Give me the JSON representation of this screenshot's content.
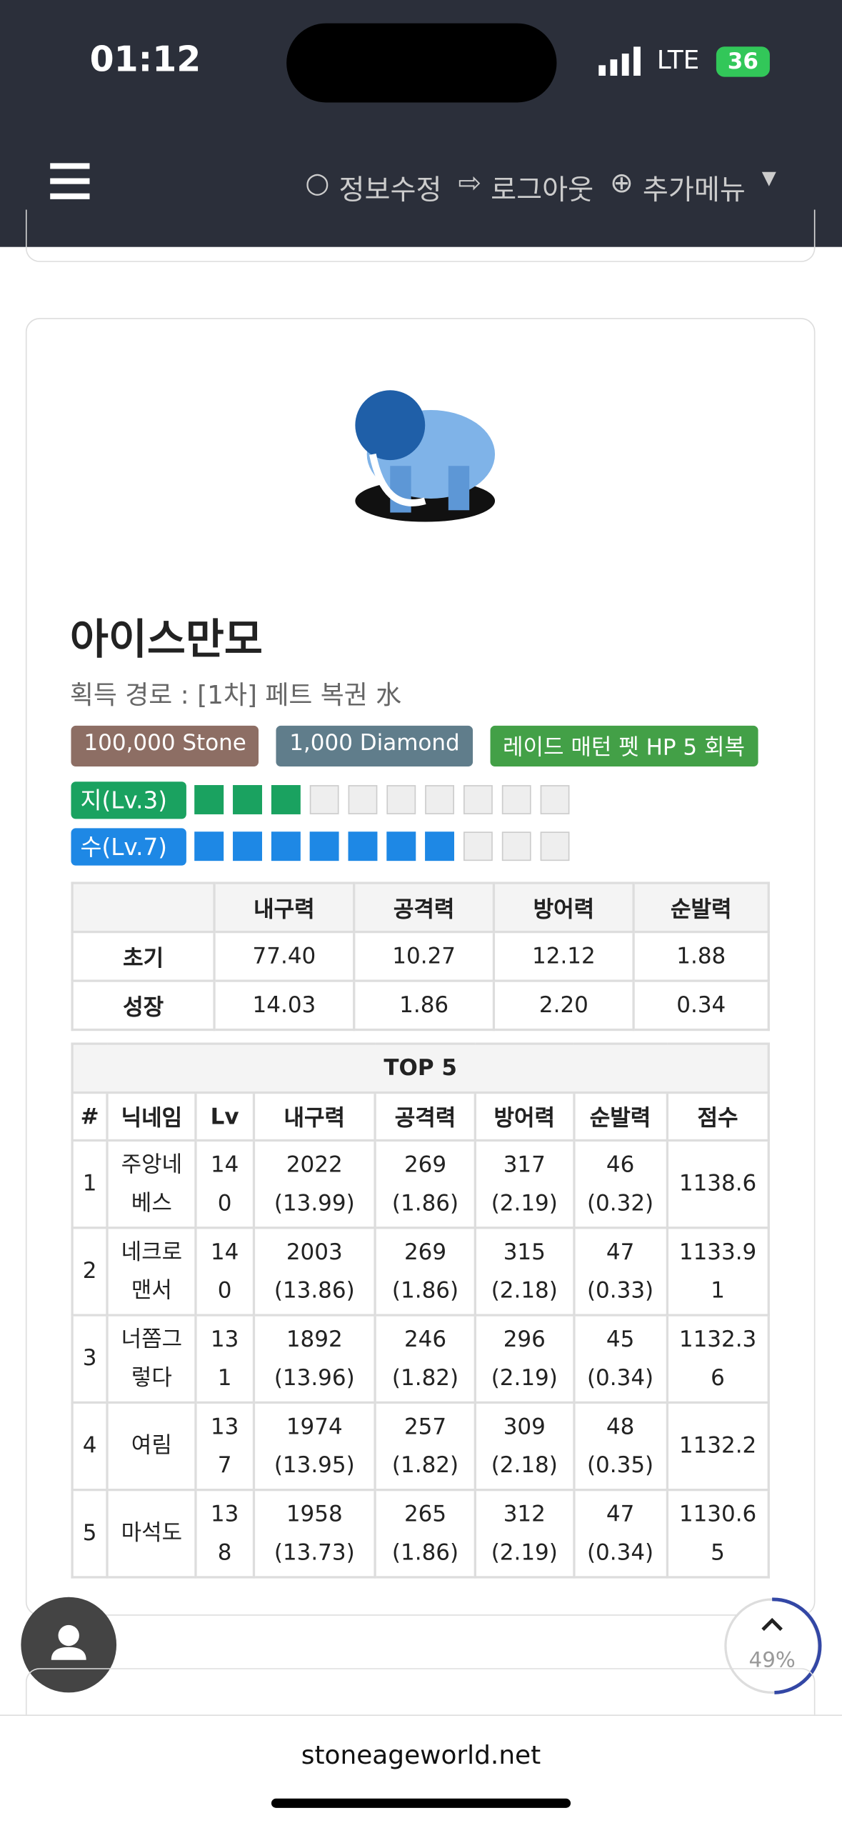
{
  "status": {
    "time": "01:12",
    "network": "LTE",
    "battery": "36"
  },
  "nav": {
    "items": [
      "정보수정",
      "로그아웃",
      "추가메뉴"
    ]
  },
  "card": {
    "name": "아이스만모",
    "source": "획득 경로 : [1차] 페트 복권 水",
    "badges": [
      "100,000 Stone",
      "1,000 Diamond",
      "레이드 매턴 펫 HP 5 회복"
    ],
    "elements": [
      {
        "label": "지(Lv.3)",
        "level": 3,
        "slots": 10,
        "color": "#1aa260"
      },
      {
        "label": "수(Lv.7)",
        "level": 7,
        "slots": 10,
        "color": "#1e88e5"
      }
    ],
    "stats": {
      "headers": [
        "내구력",
        "공격력",
        "방어력",
        "순발력"
      ],
      "rows": [
        {
          "label": "초기",
          "values": [
            "77.40",
            "10.27",
            "12.12",
            "1.88"
          ]
        },
        {
          "label": "성장",
          "values": [
            "14.03",
            "1.86",
            "2.20",
            "0.34"
          ]
        }
      ]
    },
    "top": {
      "title": "TOP 5",
      "headers": [
        "#",
        "닉네임",
        "Lv",
        "내구력",
        "공격력",
        "방어력",
        "순발력",
        "점수"
      ],
      "rows": [
        [
          "1",
          "주앙네베스",
          "140",
          [
            "2022",
            "(13.99)"
          ],
          [
            "269",
            "(1.86)"
          ],
          [
            "317",
            "(2.19)"
          ],
          [
            "46",
            "(0.32)"
          ],
          "1138.6"
        ],
        [
          "2",
          "네크로맨서",
          "140",
          [
            "2003",
            "(13.86)"
          ],
          [
            "269",
            "(1.86)"
          ],
          [
            "315",
            "(2.18)"
          ],
          [
            "47",
            "(0.33)"
          ],
          "1133.91"
        ],
        [
          "3",
          "너쫌그렇다",
          "131",
          [
            "1892",
            "(13.96)"
          ],
          [
            "246",
            "(1.82)"
          ],
          [
            "296",
            "(2.19)"
          ],
          [
            "45",
            "(0.34)"
          ],
          "1132.36"
        ],
        [
          "4",
          "여림",
          "137",
          [
            "1974",
            "(13.95)"
          ],
          [
            "257",
            "(1.82)"
          ],
          [
            "309",
            "(2.18)"
          ],
          [
            "48",
            "(0.35)"
          ],
          "1132.2"
        ],
        [
          "5",
          "마석도",
          "138",
          [
            "1958",
            "(13.73)"
          ],
          [
            "265",
            "(1.86)"
          ],
          [
            "312",
            "(2.19)"
          ],
          [
            "47",
            "(0.34)"
          ],
          "1130.65"
        ]
      ]
    }
  },
  "footer": {
    "url": "stoneageworld.net",
    "scroll": "49%"
  }
}
